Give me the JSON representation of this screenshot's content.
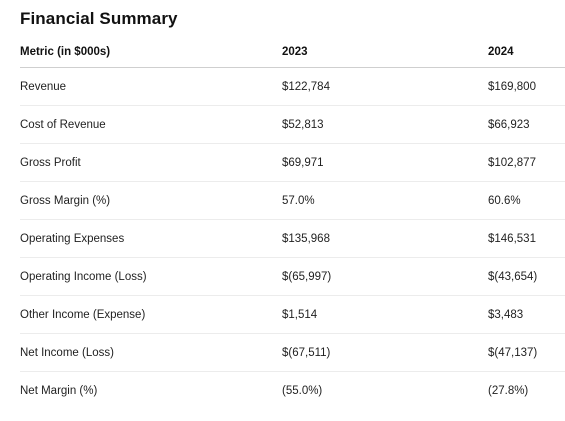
{
  "title": "Financial Summary",
  "columns": [
    "Metric (in $000s)",
    "2023",
    "2024"
  ],
  "rows": [
    {
      "metric": "Revenue",
      "y2023": "$122,784",
      "y2024": "$169,800"
    },
    {
      "metric": "Cost of Revenue",
      "y2023": "$52,813",
      "y2024": "$66,923"
    },
    {
      "metric": "Gross Profit",
      "y2023": "$69,971",
      "y2024": "$102,877"
    },
    {
      "metric": "Gross Margin (%)",
      "y2023": "57.0%",
      "y2024": "60.6%"
    },
    {
      "metric": "Operating Expenses",
      "y2023": "$135,968",
      "y2024": "$146,531"
    },
    {
      "metric": "Operating Income (Loss)",
      "y2023": "$(65,997)",
      "y2024": "$(43,654)"
    },
    {
      "metric": "Other Income (Expense)",
      "y2023": "$1,514",
      "y2024": "$3,483"
    },
    {
      "metric": "Net Income (Loss)",
      "y2023": "$(67,511)",
      "y2024": "$(47,137)"
    },
    {
      "metric": "Net Margin (%)",
      "y2023": "(55.0%)",
      "y2024": "(27.8%)"
    }
  ],
  "chart_data": {
    "type": "table",
    "title": "Financial Summary",
    "columns": [
      "Metric (in $000s)",
      "2023",
      "2024"
    ],
    "rows": [
      [
        "Revenue",
        "$122,784",
        "$169,800"
      ],
      [
        "Cost of Revenue",
        "$52,813",
        "$66,923"
      ],
      [
        "Gross Profit",
        "$69,971",
        "$102,877"
      ],
      [
        "Gross Margin (%)",
        "57.0%",
        "60.6%"
      ],
      [
        "Operating Expenses",
        "$135,968",
        "$146,531"
      ],
      [
        "Operating Income (Loss)",
        "$(65,997)",
        "$(43,654)"
      ],
      [
        "Other Income (Expense)",
        "$1,514",
        "$3,483"
      ],
      [
        "Net Income (Loss)",
        "$(67,511)",
        "$(47,137)"
      ],
      [
        "Net Margin (%)",
        "(55.0%)",
        "(27.8%)"
      ]
    ]
  }
}
